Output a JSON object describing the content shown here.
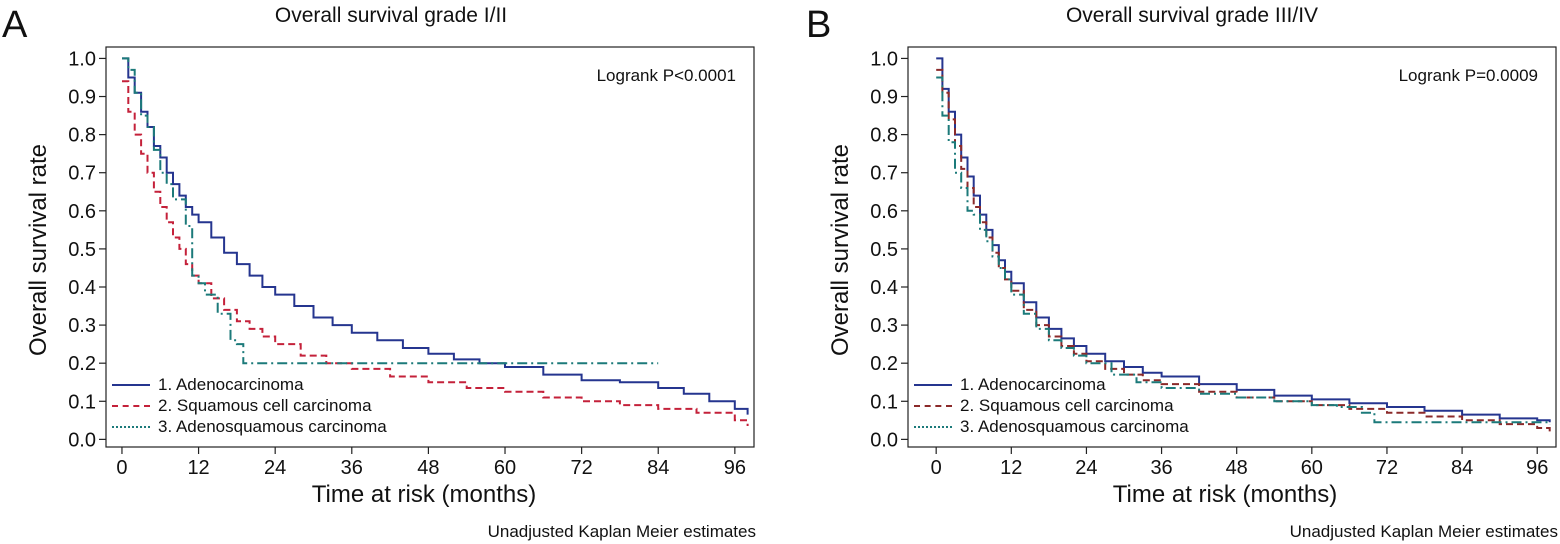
{
  "panels": [
    {
      "letter": "A",
      "title": "Overall survival grade I/II",
      "annotation": "Logrank P<0.0001",
      "footnote": "Unadjusted Kaplan Meier estimates"
    },
    {
      "letter": "B",
      "title": "Overall survival grade III/IV",
      "annotation": "Logrank P=0.0009",
      "footnote": "Unadjusted Kaplan Meier estimates"
    }
  ],
  "chart_data": [
    {
      "type": "line",
      "title": "Overall survival grade I/II",
      "xlabel": "Time at risk (months)",
      "ylabel": "Overall survival rate",
      "xticks": [
        0,
        12,
        24,
        36,
        48,
        60,
        72,
        84,
        96
      ],
      "yticks": [
        0.0,
        0.1,
        0.2,
        0.3,
        0.4,
        0.5,
        0.6,
        0.7,
        0.8,
        0.9,
        1.0
      ],
      "ytick_labels": [
        "0.0",
        "0.1",
        "0.2",
        "0.3",
        "0.4",
        "0.5",
        "0.6",
        "0.7",
        "0.8",
        "0.9",
        "1.0"
      ],
      "xlim": [
        -2.5,
        99
      ],
      "ylim": [
        -0.02,
        1.03
      ],
      "legend_position": "bottom-left",
      "grid": false,
      "series": [
        {
          "name": "1. Adenocarcinoma",
          "color": "#25358f",
          "dash": "solid",
          "x": [
            0,
            1,
            2,
            3,
            4,
            5,
            6,
            7,
            8,
            9,
            10,
            11,
            12,
            14,
            16,
            18,
            20,
            22,
            24,
            27,
            30,
            33,
            36,
            40,
            44,
            48,
            52,
            56,
            60,
            66,
            72,
            78,
            84,
            88,
            92,
            96,
            98
          ],
          "y": [
            1.0,
            0.95,
            0.91,
            0.86,
            0.82,
            0.77,
            0.74,
            0.7,
            0.67,
            0.64,
            0.61,
            0.59,
            0.57,
            0.53,
            0.49,
            0.46,
            0.43,
            0.4,
            0.38,
            0.35,
            0.32,
            0.3,
            0.28,
            0.26,
            0.24,
            0.225,
            0.21,
            0.2,
            0.19,
            0.17,
            0.155,
            0.15,
            0.135,
            0.12,
            0.1,
            0.08,
            0.065
          ]
        },
        {
          "name": "2. Squamous cell carcinoma",
          "color": "#c4213a",
          "dash": "dashed",
          "x": [
            0,
            1,
            2,
            3,
            4,
            5,
            6,
            7,
            8,
            9,
            10,
            11,
            12,
            14,
            16,
            18,
            20,
            22,
            24,
            28,
            32,
            36,
            42,
            48,
            54,
            60,
            66,
            72,
            78,
            84,
            90,
            96,
            98
          ],
          "y": [
            0.94,
            0.86,
            0.8,
            0.75,
            0.7,
            0.65,
            0.61,
            0.57,
            0.53,
            0.5,
            0.46,
            0.43,
            0.41,
            0.37,
            0.34,
            0.31,
            0.29,
            0.27,
            0.25,
            0.22,
            0.2,
            0.185,
            0.165,
            0.15,
            0.135,
            0.125,
            0.11,
            0.1,
            0.09,
            0.08,
            0.07,
            0.05,
            0.035
          ]
        },
        {
          "name": "3. Adenosquamous carcinoma",
          "color": "#1c7a7a",
          "dash": "dashdot",
          "x": [
            0,
            1,
            2,
            3,
            4,
            5,
            6,
            7,
            8,
            9,
            10,
            11,
            12,
            13,
            15,
            17,
            18,
            19,
            84
          ],
          "y": [
            1.0,
            0.97,
            0.91,
            0.85,
            0.82,
            0.76,
            0.7,
            0.67,
            0.63,
            0.63,
            0.56,
            0.43,
            0.41,
            0.38,
            0.33,
            0.26,
            0.25,
            0.2,
            0.2
          ]
        }
      ]
    },
    {
      "type": "line",
      "title": "Overall survival grade III/IV",
      "xlabel": "Time at risk (months)",
      "ylabel": "Overall survival rate",
      "xticks": [
        0,
        12,
        24,
        36,
        48,
        60,
        72,
        84,
        96
      ],
      "yticks": [
        0.0,
        0.1,
        0.2,
        0.3,
        0.4,
        0.5,
        0.6,
        0.7,
        0.8,
        0.9,
        1.0
      ],
      "ytick_labels": [
        "0.0",
        "0.1",
        "0.2",
        "0.3",
        "0.4",
        "0.5",
        "0.6",
        "0.7",
        "0.8",
        "0.9",
        "1.0"
      ],
      "xlim": [
        -4.5,
        99
      ],
      "ylim": [
        -0.02,
        1.03
      ],
      "legend_position": "bottom-left",
      "grid": false,
      "series": [
        {
          "name": "1. Adenocarcinoma",
          "color": "#25358f",
          "dash": "solid",
          "x": [
            0,
            1,
            2,
            3,
            4,
            5,
            6,
            7,
            8,
            9,
            10,
            11,
            12,
            14,
            16,
            18,
            20,
            22,
            24,
            27,
            30,
            33,
            36,
            42,
            48,
            54,
            60,
            66,
            72,
            78,
            84,
            90,
            96,
            98
          ],
          "y": [
            1.0,
            0.92,
            0.86,
            0.8,
            0.74,
            0.69,
            0.64,
            0.59,
            0.55,
            0.51,
            0.47,
            0.44,
            0.41,
            0.36,
            0.32,
            0.29,
            0.265,
            0.245,
            0.225,
            0.205,
            0.19,
            0.175,
            0.165,
            0.145,
            0.13,
            0.115,
            0.105,
            0.095,
            0.085,
            0.075,
            0.065,
            0.055,
            0.05,
            0.045
          ]
        },
        {
          "name": "2. Squamous cell carcinoma",
          "color": "#8b2a2a",
          "dash": "dashed",
          "x": [
            0,
            1,
            2,
            3,
            4,
            5,
            6,
            7,
            8,
            9,
            10,
            11,
            12,
            14,
            16,
            18,
            20,
            22,
            24,
            27,
            30,
            33,
            36,
            42,
            48,
            54,
            60,
            66,
            72,
            78,
            84,
            90,
            96,
            98
          ],
          "y": [
            0.97,
            0.91,
            0.84,
            0.77,
            0.71,
            0.66,
            0.61,
            0.57,
            0.53,
            0.49,
            0.45,
            0.42,
            0.39,
            0.34,
            0.3,
            0.27,
            0.245,
            0.225,
            0.205,
            0.185,
            0.17,
            0.155,
            0.145,
            0.125,
            0.11,
            0.1,
            0.09,
            0.08,
            0.07,
            0.06,
            0.05,
            0.04,
            0.03,
            0.02
          ]
        },
        {
          "name": "3. Adenosquamous carcinoma",
          "color": "#1c7a7a",
          "dash": "dashdot",
          "x": [
            0,
            1,
            2,
            3,
            4,
            5,
            6,
            7,
            8,
            9,
            10,
            11,
            12,
            14,
            16,
            18,
            20,
            22,
            24,
            28,
            32,
            36,
            42,
            48,
            54,
            60,
            64,
            68,
            70,
            72,
            84,
            96,
            98
          ],
          "y": [
            0.95,
            0.85,
            0.78,
            0.7,
            0.66,
            0.6,
            0.59,
            0.55,
            0.52,
            0.48,
            0.45,
            0.42,
            0.38,
            0.33,
            0.29,
            0.26,
            0.24,
            0.22,
            0.2,
            0.17,
            0.15,
            0.135,
            0.12,
            0.11,
            0.1,
            0.09,
            0.085,
            0.07,
            0.045,
            0.045,
            0.045,
            0.045,
            0.04
          ]
        }
      ]
    }
  ]
}
